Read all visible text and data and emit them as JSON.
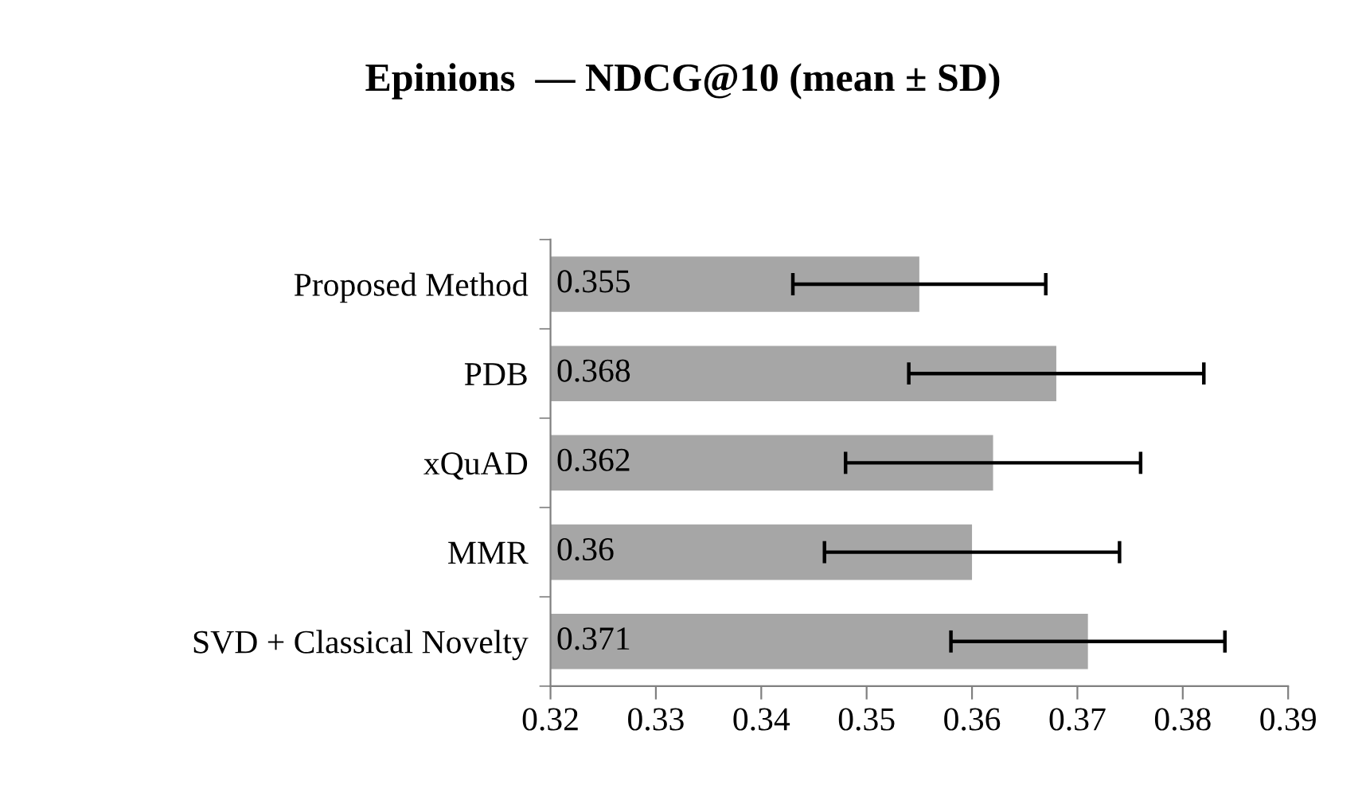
{
  "chart_data": {
    "type": "bar",
    "orientation": "horizontal",
    "title": "Epinions  — NDCG@10 (mean ± SD)",
    "categories": [
      "Proposed Method",
      "PDB",
      "xQuAD",
      "MMR",
      "SVD + Classical Novelty"
    ],
    "values": [
      0.355,
      0.368,
      0.362,
      0.36,
      0.371
    ],
    "errors": [
      0.012,
      0.014,
      0.014,
      0.014,
      0.013
    ],
    "color": "#a6a6a6",
    "xlim": [
      0.32,
      0.39
    ],
    "xticks": [
      0.32,
      0.33,
      0.34,
      0.35,
      0.36,
      0.37,
      0.38,
      0.39
    ],
    "data_labels": true,
    "grid": false,
    "legend": false
  }
}
